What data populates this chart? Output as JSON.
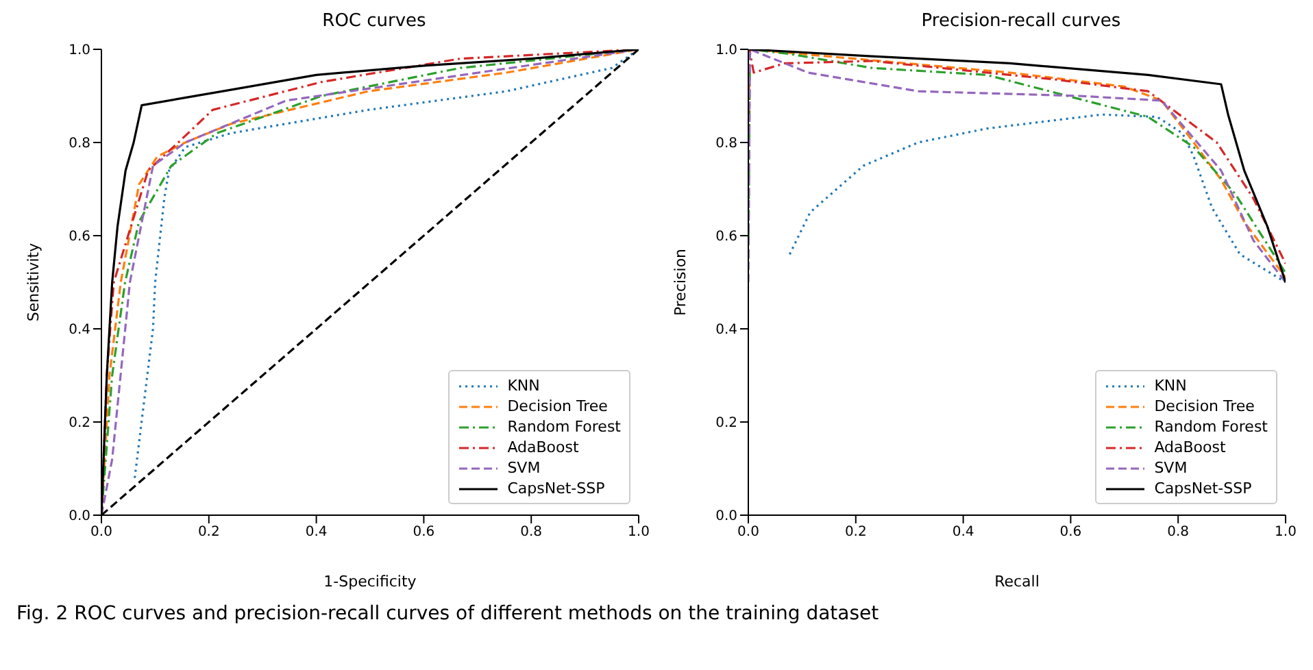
{
  "chart_data": [
    {
      "type": "line",
      "title": "ROC curves",
      "xlabel": "1-Specificity",
      "ylabel": "Sensitivity",
      "xlim": [
        0,
        1
      ],
      "ylim": [
        0,
        1
      ],
      "xticks": [
        {
          "value": 0,
          "label": "0.0"
        },
        {
          "value": 0.2,
          "label": "0.2"
        },
        {
          "value": 0.4,
          "label": "0.4"
        },
        {
          "value": 0.6,
          "label": "0.6"
        },
        {
          "value": 0.8,
          "label": "0.8"
        },
        {
          "value": 1,
          "label": "1.0"
        }
      ],
      "yticks": [
        {
          "value": 0,
          "label": "0.0"
        },
        {
          "value": 0.2,
          "label": "0.2"
        },
        {
          "value": 0.4,
          "label": "0.4"
        },
        {
          "value": 0.6,
          "label": "0.6"
        },
        {
          "value": 0.8,
          "label": "0.8"
        },
        {
          "value": 1,
          "label": "1.0"
        }
      ],
      "legend": "bottom right",
      "series": [
        {
          "name": "KNN",
          "color": "#1f77b4",
          "line_style": "dotted",
          "x": [
            0.062,
            0.096,
            0.1,
            0.117,
            0.126,
            0.156,
            0.241,
            0.497,
            0.754,
            0.95,
            1
          ],
          "values": [
            0.08,
            0.4,
            0.5,
            0.68,
            0.74,
            0.79,
            0.82,
            0.87,
            0.91,
            0.96,
            1
          ]
        },
        {
          "name": "Decision Tree",
          "color": "#ff7f0e",
          "line_style": "dashed",
          "x": [
            0,
            0.015,
            0.036,
            0.07,
            0.104,
            0.156,
            0.241,
            0.497,
            0.754,
            1
          ],
          "values": [
            0,
            0.3,
            0.5,
            0.71,
            0.77,
            0.8,
            0.84,
            0.91,
            0.95,
            1
          ]
        },
        {
          "name": "Random Forest",
          "color": "#2ca02c",
          "line_style": "dashdot",
          "x": [
            0,
            0.02,
            0.044,
            0.07,
            0.13,
            0.215,
            0.41,
            0.668,
            1
          ],
          "values": [
            0,
            0.3,
            0.5,
            0.63,
            0.75,
            0.82,
            0.9,
            0.96,
            1
          ]
        },
        {
          "name": "AdaBoost",
          "color": "#d62728",
          "line_style": "dashdot",
          "x": [
            0,
            0.01,
            0.023,
            0.087,
            0.143,
            0.207,
            0.41,
            0.668,
            1
          ],
          "values": [
            0,
            0.3,
            0.5,
            0.74,
            0.8,
            0.87,
            0.93,
            0.98,
            1
          ]
        },
        {
          "name": "SVM",
          "color": "#9467bd",
          "line_style": "dashed",
          "x": [
            0,
            0.02,
            0.053,
            0.096,
            0.156,
            0.344,
            0.583,
            1
          ],
          "values": [
            0,
            0.12,
            0.5,
            0.75,
            0.8,
            0.89,
            0.93,
            1
          ]
        },
        {
          "name": "CapsNet-SSP",
          "color": "#000000",
          "line_style": "solid",
          "x": [
            0,
            0.01,
            0.02,
            0.03,
            0.045,
            0.06,
            0.075,
            0.15,
            0.25,
            0.4,
            0.6,
            0.8,
            1
          ],
          "values": [
            0,
            0.3,
            0.5,
            0.62,
            0.74,
            0.8,
            0.88,
            0.895,
            0.915,
            0.945,
            0.965,
            0.98,
            1
          ]
        },
        {
          "color": "#000000",
          "line_style": "dashed",
          "x": [
            0,
            1
          ],
          "values": [
            0,
            1
          ]
        }
      ],
      "annotations": [
        "Fig. 2 ROC curves and precision-recall curves of different methods on the training dataset"
      ]
    },
    {
      "type": "line",
      "title": "Precision-recall curves",
      "xlabel": "Recall",
      "ylabel": "Precision",
      "xlim": [
        0,
        1
      ],
      "ylim": [
        0,
        1
      ],
      "xticks": [
        {
          "value": 0,
          "label": "0.0"
        },
        {
          "value": 0.2,
          "label": "0.2"
        },
        {
          "value": 0.4,
          "label": "0.4"
        },
        {
          "value": 0.6,
          "label": "0.6"
        },
        {
          "value": 0.8,
          "label": "0.8"
        },
        {
          "value": 1,
          "label": "1.0"
        }
      ],
      "yticks": [
        {
          "value": 0,
          "label": "0.0"
        },
        {
          "value": 0.2,
          "label": "0.2"
        },
        {
          "value": 0.4,
          "label": "0.4"
        },
        {
          "value": 0.6,
          "label": "0.6"
        },
        {
          "value": 0.8,
          "label": "0.8"
        },
        {
          "value": 1,
          "label": "1.0"
        }
      ],
      "legend": "bottom right",
      "series": [
        {
          "name": "KNN",
          "color": "#1f77b4",
          "line_style": "dotted",
          "x": [
            0.077,
            0.115,
            0.214,
            0.316,
            0.444,
            0.658,
            0.761,
            0.808,
            0.829,
            0.863,
            0.915,
            1
          ],
          "values": [
            0.56,
            0.65,
            0.75,
            0.8,
            0.83,
            0.86,
            0.855,
            0.82,
            0.77,
            0.66,
            0.56,
            0.5
          ]
        },
        {
          "name": "Decision Tree",
          "color": "#ff7f0e",
          "line_style": "dashed",
          "x": [
            0.003,
            0.487,
            0.7,
            0.769,
            0.829,
            0.88,
            0.923,
            1
          ],
          "values": [
            1,
            0.95,
            0.92,
            0.89,
            0.8,
            0.72,
            0.63,
            0.51
          ]
        },
        {
          "name": "Random Forest",
          "color": "#2ca02c",
          "line_style": "dashdot",
          "x": [
            0,
            0.003,
            0.077,
            0.23,
            0.444,
            0.744,
            0.829,
            0.906,
            1
          ],
          "values": [
            0.55,
            1,
            0.99,
            0.96,
            0.945,
            0.855,
            0.79,
            0.69,
            0.52
          ]
        },
        {
          "name": "AdaBoost",
          "color": "#d62728",
          "line_style": "dashdot",
          "x": [
            0,
            0.002,
            0.01,
            0.068,
            0.23,
            0.573,
            0.744,
            0.872,
            0.94,
            1
          ],
          "values": [
            0.82,
            1,
            0.95,
            0.97,
            0.975,
            0.935,
            0.91,
            0.8,
            0.68,
            0.54
          ]
        },
        {
          "name": "SVM",
          "color": "#9467bd",
          "line_style": "dashed",
          "x": [
            0,
            0.003,
            0.111,
            0.316,
            0.615,
            0.769,
            0.88,
            0.94,
            1
          ],
          "values": [
            0.5,
            1,
            0.95,
            0.91,
            0.9,
            0.89,
            0.74,
            0.59,
            0.5
          ]
        },
        {
          "name": "CapsNet-SSP",
          "color": "#000000",
          "line_style": "solid",
          "x": [
            0,
            0.23,
            0.487,
            0.744,
            0.88,
            0.893,
            0.923,
            0.966,
            1
          ],
          "values": [
            1,
            0.985,
            0.97,
            0.945,
            0.925,
            0.86,
            0.74,
            0.62,
            0.5
          ]
        }
      ]
    }
  ]
}
